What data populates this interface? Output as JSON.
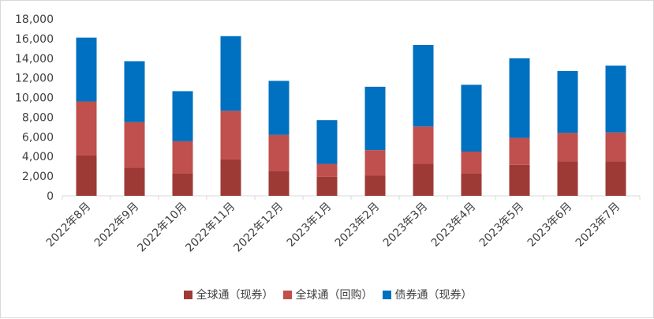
{
  "chart_data": {
    "type": "bar",
    "stacked": true,
    "categories": [
      "2022年8月",
      "2022年9月",
      "2022年10月",
      "2022年11月",
      "2022年12月",
      "2023年1月",
      "2023年2月",
      "2023年3月",
      "2023年4月",
      "2023年5月",
      "2023年6月",
      "2023年7月"
    ],
    "series": [
      {
        "name": "全球通（现券）",
        "color": "#9e3a36",
        "values": [
          4100,
          2850,
          2300,
          3700,
          2550,
          1950,
          2050,
          3250,
          2300,
          3150,
          3500,
          3500
        ]
      },
      {
        "name": "全球通（回购）",
        "color": "#c0504d",
        "values": [
          5500,
          4650,
          3250,
          4950,
          3650,
          1300,
          2600,
          3800,
          2200,
          2750,
          2900,
          2950
        ]
      },
      {
        "name": "债券通（现券）",
        "color": "#0070c0",
        "values": [
          6500,
          6200,
          5100,
          7600,
          5500,
          4450,
          6450,
          8300,
          6800,
          8100,
          6300,
          6800
        ]
      }
    ],
    "yticks": [
      "0",
      "2,000",
      "4,000",
      "6,000",
      "8,000",
      "10,000",
      "12,000",
      "14,000",
      "16,000",
      "18,000"
    ],
    "ylim": [
      0,
      18000
    ],
    "grid": false,
    "legend": "bottom",
    "title": "",
    "xlabel": "",
    "ylabel": ""
  }
}
